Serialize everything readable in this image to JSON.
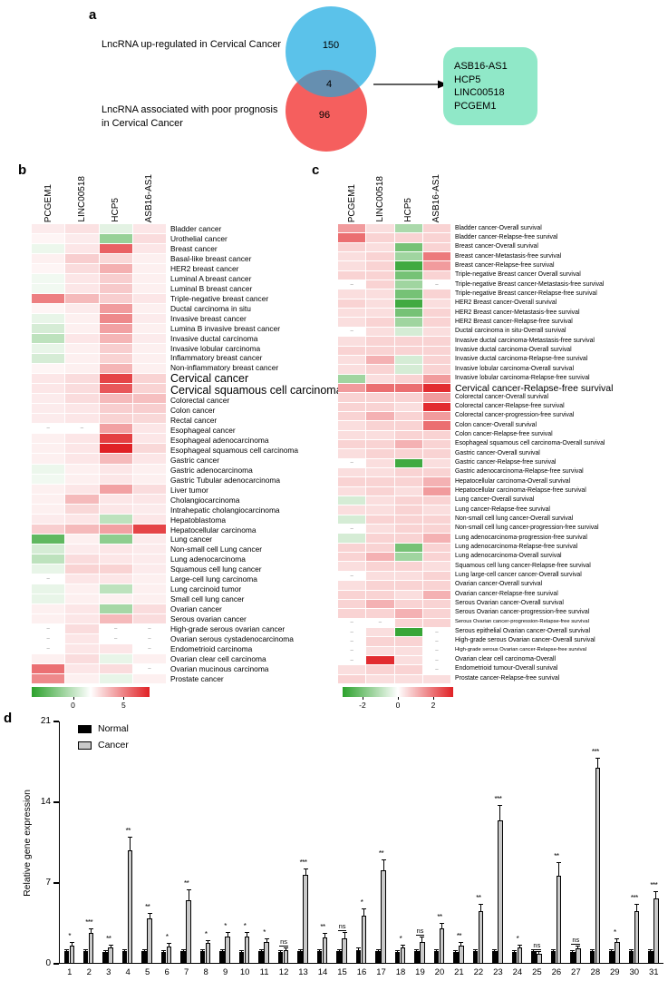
{
  "heat_colors": {
    "positive": "#e02125",
    "negative": "#2ca12c"
  },
  "panel_a": {
    "label": "a",
    "set1_label": "LncRNA up-regulated in Cervical Cancer",
    "set2_label": "LncRNA associated with poor prognosis in Cervical Cancer",
    "set1_count": "150",
    "set2_count": "96",
    "overlap_count": "4",
    "genes": [
      "ASB16-AS1",
      "HCP5",
      "LINC00518",
      "PCGEM1"
    ],
    "colors": {
      "set1": "#5bc2ea",
      "set2": "#f55f5e",
      "overlap": "#668fb0",
      "gene_box": "#90e8c8"
    }
  },
  "panel_b": {
    "label": "b",
    "columns": [
      "PCGEM1",
      "LINC00518",
      "HCP5",
      "ASB16-AS1"
    ],
    "vmax": 4.5,
    "scale_ticks": [
      {
        "label": "0",
        "pos": 0.35
      },
      {
        "label": "5",
        "pos": 0.78
      }
    ],
    "rows": [
      {
        "label": "Bladder cancer",
        "values": [
          0.4,
          0.6,
          -0.6,
          0.5
        ]
      },
      {
        "label": "Urothelial cancer",
        "values": [
          0.2,
          0.4,
          -2.2,
          0.7
        ]
      },
      {
        "label": "Breast cancer",
        "values": [
          -0.4,
          0.5,
          3.2,
          0.5
        ]
      },
      {
        "label": "Basal-like breast cancer",
        "values": [
          0.3,
          1.0,
          0.8,
          0.3
        ]
      },
      {
        "label": "HER2 breast cancer",
        "values": [
          0.2,
          0.7,
          1.6,
          0.3
        ]
      },
      {
        "label": "Luminal A breast cancer",
        "values": [
          -0.3,
          0.5,
          1.0,
          0.3
        ]
      },
      {
        "label": "Luminal B breast cancer",
        "values": [
          -0.3,
          0.5,
          1.1,
          0.3
        ]
      },
      {
        "label": "Triple-negative breast cancer",
        "values": [
          2.6,
          1.4,
          1.0,
          0.5
        ]
      },
      {
        "label": "Ductal carcinoma in situ",
        "values": [
          0.2,
          0.4,
          2.0,
          0.3
        ]
      },
      {
        "label": "Invasive breast cancer",
        "values": [
          -0.5,
          0.3,
          2.4,
          0.4
        ]
      },
      {
        "label": "Lumina B invasive breast cancer",
        "values": [
          -0.9,
          0.3,
          1.9,
          0.3
        ]
      },
      {
        "label": "Invasive ductal  carcinoma",
        "values": [
          -1.4,
          0.5,
          1.5,
          0.4
        ]
      },
      {
        "label": "Invasive lobular carcinoma",
        "values": [
          -0.5,
          0.3,
          1.0,
          0.3
        ]
      },
      {
        "label": "Inflammatory breast cancer",
        "values": [
          -0.9,
          0.3,
          0.9,
          0.3
        ]
      },
      {
        "label": "Non-inflammatory breast cancer",
        "values": [
          0.2,
          0.3,
          1.5,
          0.3
        ]
      },
      {
        "label": "Cervical cancer",
        "values": [
          0.5,
          0.7,
          3.8,
          0.9
        ],
        "hl": true
      },
      {
        "label": "Cervical squamous cell carcinoma",
        "values": [
          0.5,
          0.7,
          3.4,
          0.9
        ],
        "hl": true
      },
      {
        "label": "Colorectal cancer",
        "values": [
          0.4,
          0.7,
          1.4,
          1.3
        ]
      },
      {
        "label": "Colon cancer",
        "values": [
          0.4,
          0.5,
          1.0,
          1.0
        ]
      },
      {
        "label": "Rectal cancer",
        "values": [
          0.4,
          0.5,
          0.9,
          0.8
        ]
      },
      {
        "label": "Esophageal cancer",
        "values": [
          null,
          null,
          1.9,
          0.5
        ]
      },
      {
        "label": "Esophageal adenocarcinoma",
        "values": [
          0.3,
          0.5,
          3.9,
          0.5
        ]
      },
      {
        "label": "Esophageal squamous cell carcinoma",
        "values": [
          0.3,
          0.5,
          4.5,
          0.8
        ]
      },
      {
        "label": "Gastric cancer",
        "values": [
          0.3,
          0.5,
          1.4,
          0.5
        ]
      },
      {
        "label": "Gastric adenocarcinoma",
        "values": [
          -0.4,
          0.3,
          0.5,
          0.3
        ]
      },
      {
        "label": "Gastric Tubular adenocarcinoma",
        "values": [
          -0.3,
          0.3,
          0.5,
          0.3
        ]
      },
      {
        "label": "Liver tumor",
        "values": [
          0.3,
          0.5,
          1.9,
          0.7
        ]
      },
      {
        "label": "Cholangiocarcinoma",
        "values": [
          0.3,
          1.4,
          0.5,
          0.5
        ]
      },
      {
        "label": "Intrahepatic cholangiocarcinoma",
        "values": [
          0.3,
          0.8,
          0.5,
          0.4
        ]
      },
      {
        "label": "Hepatoblastoma",
        "values": [
          0.4,
          0.5,
          -1.4,
          0.5
        ]
      },
      {
        "label": "Hepatocellular carcinoma",
        "values": [
          1.0,
          1.4,
          1.9,
          3.8
        ]
      },
      {
        "label": "Lung cancer",
        "values": [
          -3.4,
          0.3,
          -2.4,
          0.4
        ]
      },
      {
        "label": "Non-small cell Lung cancer",
        "values": [
          -0.9,
          0.4,
          0.5,
          0.4
        ]
      },
      {
        "label": "Lung adenocarcinoma",
        "values": [
          -1.4,
          0.7,
          0.5,
          0.4
        ]
      },
      {
        "label": "Squamous cell lung cancer",
        "values": [
          -0.5,
          0.9,
          0.9,
          0.4
        ]
      },
      {
        "label": "Large-cell lung carcinoma",
        "values": [
          null,
          0.5,
          0.5,
          0.3
        ]
      },
      {
        "label": "Lung carcinoid tumor",
        "values": [
          -0.5,
          0.3,
          -1.4,
          0.3
        ]
      },
      {
        "label": "Small cell lung cancer",
        "values": [
          -0.5,
          0.3,
          0.3,
          0.3
        ]
      },
      {
        "label": "Ovarian cancer",
        "values": [
          0.3,
          0.5,
          -1.9,
          0.7
        ]
      },
      {
        "label": "Serous ovarian cancer",
        "values": [
          0.3,
          0.5,
          1.4,
          0.7
        ]
      },
      {
        "label": "High-grade serous ovarian cancer",
        "values": [
          null,
          0.7,
          null,
          null
        ]
      },
      {
        "label": "Ovarian serous cystadenocarcinoma",
        "values": [
          null,
          0.5,
          null,
          null
        ]
      },
      {
        "label": "Endometrioid carcinoma",
        "values": [
          null,
          0.5,
          0.5,
          null
        ]
      },
      {
        "label": "Ovarian clear cell carcinoma",
        "values": [
          0.3,
          0.7,
          -0.5,
          0.3
        ]
      },
      {
        "label": "Ovarian mucinous carcinoma",
        "values": [
          2.9,
          0.5,
          0.7,
          null
        ]
      },
      {
        "label": "Prostate cancer",
        "values": [
          2.4,
          0.3,
          -0.5,
          0.3
        ]
      }
    ]
  },
  "panel_c": {
    "label": "c",
    "columns": [
      "PCGEM1",
      "LINC00518",
      "HCP5",
      "ASB16-AS1"
    ],
    "vmax": 2,
    "scale_ticks": [
      {
        "label": "-2",
        "pos": 0.18
      },
      {
        "label": "0",
        "pos": 0.5
      },
      {
        "label": "2",
        "pos": 0.82
      }
    ],
    "rows": [
      {
        "label": "Bladder cancer-Overall survival",
        "values": [
          0.9,
          0.3,
          -0.8,
          0.4
        ]
      },
      {
        "label": "Bladder cancer-Relapse-free survival",
        "values": [
          1.3,
          0.4,
          0.4,
          0.4
        ]
      },
      {
        "label": "Breast cancer-Overall survival",
        "values": [
          0.4,
          0.3,
          -1.3,
          0.4
        ]
      },
      {
        "label": "Breast cancer-Metastasis-free survival",
        "values": [
          0.3,
          0.4,
          -0.9,
          1.2
        ]
      },
      {
        "label": "Breast cancer-Relapse-free survival",
        "values": [
          0.3,
          0.4,
          -1.8,
          0.9
        ]
      },
      {
        "label": "Triple-negative Breast cancer Overall survival",
        "values": [
          0.4,
          0.4,
          -1.3,
          0.4
        ]
      },
      {
        "label": "Triple-negative Breast cancer-Metastasis-free  survival",
        "values": [
          null,
          0.4,
          -0.9,
          null
        ]
      },
      {
        "label": "Triple-negative Breast cancer-Relapse-free survival",
        "values": [
          0.3,
          0.3,
          -1.3,
          0.4
        ]
      },
      {
        "label": "HER2 Breast cancer-Overall survival",
        "values": [
          0.4,
          0.3,
          -1.8,
          0.3
        ]
      },
      {
        "label": "HER2 Breast cancer-Metastasis-free survival",
        "values": [
          0.3,
          0.3,
          -1.3,
          0.4
        ]
      },
      {
        "label": "HER2 Breast cancer-Relapse-free survival",
        "values": [
          0.3,
          0.4,
          -0.9,
          0.4
        ]
      },
      {
        "label": "Ductal carcinoma in situ-Overall survival",
        "values": [
          null,
          0.3,
          -0.4,
          0.3
        ]
      },
      {
        "label": "Invasive ductal carcinoma-Metastasis-free survival",
        "values": [
          0.3,
          0.4,
          0.4,
          0.4
        ]
      },
      {
        "label": "Invasive ductal carcinoma-Overall survival",
        "values": [
          0.4,
          0.4,
          0.4,
          0.4
        ]
      },
      {
        "label": "Invasive ductal carcinoma-Relapse-free survival",
        "values": [
          0.3,
          0.7,
          -0.4,
          0.4
        ]
      },
      {
        "label": "Invasive lobular carcinoma-Overall survival",
        "values": [
          0.3,
          0.4,
          -0.4,
          0.4
        ]
      },
      {
        "label": "Invasive lobular carcinoma-Relapse-free survival",
        "values": [
          -0.9,
          0.3,
          0.4,
          0.9
        ]
      },
      {
        "label": "Cervical cancer-Relapse-free survival",
        "values": [
          0.9,
          1.3,
          1.3,
          1.9
        ],
        "hl": true
      },
      {
        "label": "Colorectal cancer-Overall survival",
        "values": [
          0.4,
          0.4,
          0.4,
          0.9
        ]
      },
      {
        "label": "Colorectal cancer-Relapse-free survival",
        "values": [
          0.4,
          0.4,
          0.3,
          1.9
        ]
      },
      {
        "label": "Colorectal cancer-progression-free survival",
        "values": [
          0.4,
          0.7,
          0.4,
          0.9
        ]
      },
      {
        "label": "Colon cancer-Overall survival",
        "values": [
          0.3,
          0.4,
          0.4,
          1.3
        ]
      },
      {
        "label": "Colon cancer-Relapse-free survival",
        "values": [
          0.3,
          0.3,
          0.4,
          0.4
        ]
      },
      {
        "label": "Esophageal squamous cell carcinoma-Overall survival",
        "values": [
          0.4,
          0.4,
          0.7,
          0.4
        ]
      },
      {
        "label": "Gastric cancer-Overall survival",
        "values": [
          0.3,
          0.4,
          0.4,
          0.4
        ]
      },
      {
        "label": "Gastric cancer-Relapse-free survival",
        "values": [
          null,
          0.3,
          -1.8,
          0.3
        ]
      },
      {
        "label": "Gastric adenocarcinoma-Relapse-free survival",
        "values": [
          0.3,
          0.3,
          0.4,
          0.4
        ]
      },
      {
        "label": "Hepatocellular carcinoma-Overall survival",
        "values": [
          0.4,
          0.4,
          0.4,
          0.7
        ]
      },
      {
        "label": "Hepatocellular carcinoma-Relapse-free survival",
        "values": [
          0.3,
          0.4,
          0.3,
          0.9
        ]
      },
      {
        "label": "Lung cancer-Overall survival",
        "values": [
          -0.4,
          0.3,
          0.4,
          0.4
        ]
      },
      {
        "label": "Lung cancer-Relapse-free survival",
        "values": [
          0.3,
          0.3,
          0.4,
          0.3
        ]
      },
      {
        "label": "Non-small cell lung cancer-Overall survival",
        "values": [
          -0.4,
          0.4,
          0.4,
          0.4
        ]
      },
      {
        "label": "Non-small cell lung cancer-progression-free survival",
        "values": [
          null,
          0.3,
          0.4,
          0.4
        ]
      },
      {
        "label": "Lung adenocarcinoma-progression-free survival",
        "values": [
          -0.4,
          0.4,
          0.4,
          0.7
        ]
      },
      {
        "label": "Lung adenocarcinoma-Relapse-free survival",
        "values": [
          0.4,
          0.4,
          -1.3,
          0.4
        ]
      },
      {
        "label": "Lung adenocarcinoma-Overall survival",
        "values": [
          0.4,
          0.7,
          -0.9,
          0.4
        ]
      },
      {
        "label": "Squamous cell lung cancer-Relapse-free survival",
        "values": [
          0.3,
          0.4,
          0.4,
          0.3
        ]
      },
      {
        "label": "Lung large-cell cancer cancer-Overall survival",
        "values": [
          null,
          0.3,
          0.3,
          0.4
        ]
      },
      {
        "label": "Ovarian cancer-Overall survival",
        "values": [
          0.3,
          0.4,
          0.4,
          0.4
        ]
      },
      {
        "label": "Ovarian cancer-Relapse-free survival",
        "values": [
          0.4,
          0.4,
          0.3,
          0.7
        ]
      },
      {
        "label": "Serous Ovarian cancer-Overall survival",
        "values": [
          0.4,
          0.7,
          0.4,
          0.4
        ]
      },
      {
        "label": "Serous Ovarian cancer-progression-free survival",
        "values": [
          0.4,
          0.4,
          0.7,
          0.4
        ]
      },
      {
        "label": "Serous Ovarian cancer-progression-Relapse-free survival",
        "values": [
          null,
          null,
          0.4,
          0.4
        ],
        "sm": true
      },
      {
        "label": "Serous epithelial Ovarian cancer-Overall survival",
        "values": [
          null,
          0.3,
          -1.9,
          null
        ]
      },
      {
        "label": "High-grade serous Ovarian cancer-Overall survival",
        "values": [
          null,
          0.4,
          0.4,
          null
        ]
      },
      {
        "label": "High-grade serous Ovarian cancer-Relapse-free survival",
        "values": [
          null,
          0.3,
          0.3,
          null
        ],
        "sm": true
      },
      {
        "label": "Ovarian clear cell carcinoma-Overall",
        "values": [
          null,
          1.9,
          0.3,
          null
        ]
      },
      {
        "label": "Endometrioid tumour-Overall survival",
        "values": [
          0.3,
          0.4,
          0.4,
          null
        ]
      },
      {
        "label": "Prostate cancer-Relapse-free survival",
        "values": [
          0.4,
          0.3,
          0.3,
          0.3
        ]
      }
    ]
  },
  "panel_d": {
    "label": "d"
  },
  "chart_data": {
    "type": "bar",
    "title": "",
    "xlabel": "",
    "ylabel": "Relative gene expression",
    "ylim": [
      0,
      21
    ],
    "yticks": [
      0,
      7,
      14,
      21
    ],
    "legend_position": "top-left",
    "categories": [
      "1",
      "2",
      "3",
      "4",
      "5",
      "6",
      "7",
      "8",
      "9",
      "10",
      "11",
      "12",
      "13",
      "14",
      "15",
      "16",
      "17",
      "18",
      "19",
      "20",
      "21",
      "22",
      "23",
      "24",
      "25",
      "26",
      "27",
      "28",
      "29",
      "30",
      "31"
    ],
    "series": [
      {
        "name": "Normal",
        "color": "#000000",
        "values": [
          1.1,
          1.1,
          1.0,
          1.1,
          1.1,
          1.0,
          1.1,
          1.1,
          1.1,
          1.0,
          1.1,
          1.0,
          1.1,
          1.1,
          1.1,
          1.2,
          1.1,
          1.0,
          1.1,
          1.1,
          1.0,
          1.1,
          1.1,
          1.0,
          1.1,
          1.1,
          1.0,
          1.1,
          1.1,
          1.1,
          1.1
        ],
        "errors": [
          0.1,
          0.1,
          0.1,
          0.1,
          0.1,
          0.1,
          0.1,
          0.1,
          0.1,
          0.1,
          0.1,
          0.1,
          0.1,
          0.1,
          0.1,
          0.1,
          0.1,
          0.1,
          0.1,
          0.1,
          0.1,
          0.1,
          0.1,
          0.1,
          0.1,
          0.1,
          0.1,
          0.1,
          0.1,
          0.1,
          0.1
        ]
      },
      {
        "name": "Cancer",
        "color": "#c9c9c9",
        "values": [
          1.6,
          2.7,
          1.4,
          9.8,
          3.9,
          1.5,
          5.5,
          1.8,
          2.4,
          2.4,
          1.9,
          1.2,
          7.7,
          2.3,
          2.2,
          4.2,
          8.1,
          1.4,
          1.9,
          3.1,
          1.6,
          4.6,
          12.4,
          1.4,
          0.9,
          7.6,
          1.3,
          17.0,
          1.9,
          4.6,
          5.7
        ],
        "errors": [
          0.2,
          0.3,
          0.15,
          1.1,
          0.4,
          0.2,
          0.9,
          0.2,
          0.3,
          0.3,
          0.25,
          0.15,
          0.5,
          0.3,
          0.45,
          0.5,
          0.9,
          0.15,
          0.35,
          0.4,
          0.2,
          0.5,
          1.3,
          0.2,
          0.15,
          1.1,
          0.2,
          0.8,
          0.25,
          0.5,
          0.5
        ]
      }
    ],
    "significance": [
      "*",
      "***",
      "**",
      "**",
      "**",
      "*",
      "**",
      "*",
      "*",
      "*",
      "*",
      "ns",
      "***",
      "**",
      "ns",
      "*",
      "**",
      "*",
      "ns",
      "**",
      "**",
      "**",
      "***",
      "*",
      "ns",
      "**",
      "ns",
      "***",
      "*",
      "***",
      "***"
    ]
  }
}
